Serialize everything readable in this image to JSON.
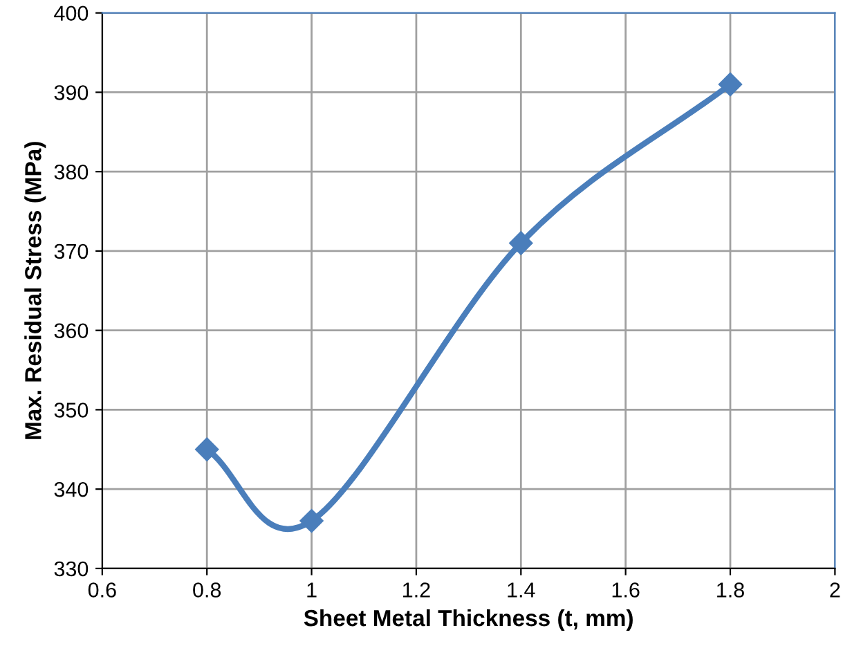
{
  "chart_data": {
    "type": "line",
    "xlabel": "Sheet Metal Thickness (t, mm)",
    "ylabel": "Max. Residual Stress (MPa)",
    "x": [
      0.8,
      1,
      1.4,
      1.8
    ],
    "series": [
      {
        "color": "#4a7ebb",
        "values": [
          345,
          336,
          371,
          391
        ]
      }
    ],
    "xlim": [
      0.6,
      2
    ],
    "xticks": [
      0.6,
      0.8,
      1,
      1.2,
      1.4,
      1.6,
      1.8,
      2
    ],
    "ylim": [
      330,
      400
    ],
    "yticks": [
      330,
      340,
      350,
      360,
      370,
      380,
      390,
      400
    ],
    "grid": true,
    "marker": "diamond",
    "line_style": "solid"
  }
}
